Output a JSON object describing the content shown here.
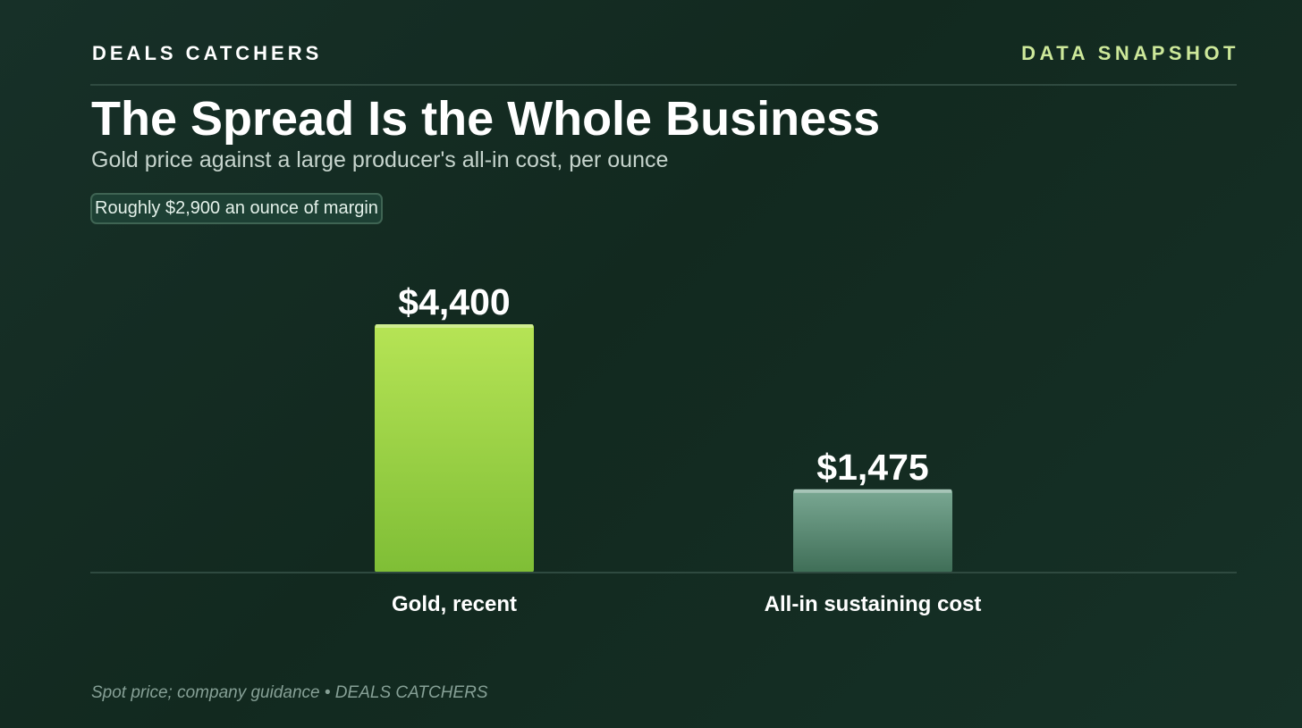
{
  "header": {
    "brand": "DEALS CATCHERS",
    "tag": "DATA SNAPSHOT"
  },
  "title": "The Spread Is the Whole Business",
  "subtitle": "Gold price against a large producer's all-in cost, per ounce",
  "callout": "Roughly $2,900 an ounce of margin",
  "footer": "Spot price; company guidance • DEALS CATCHERS",
  "colors": {
    "background": "#152d24",
    "accent": "#cde89a",
    "gold_bar": "#9ed444",
    "cost_bar": "#5c8a74"
  },
  "chart_data": {
    "type": "bar",
    "categories": [
      "Gold, recent",
      "All-in sustaining cost"
    ],
    "values": [
      4400,
      1475
    ],
    "value_labels": [
      "$4,400",
      "$1,475"
    ],
    "ylim": [
      0,
      4400
    ],
    "grid": false,
    "legend": "none",
    "bar_colors": [
      "#9ed444",
      "#5c8a74"
    ]
  }
}
